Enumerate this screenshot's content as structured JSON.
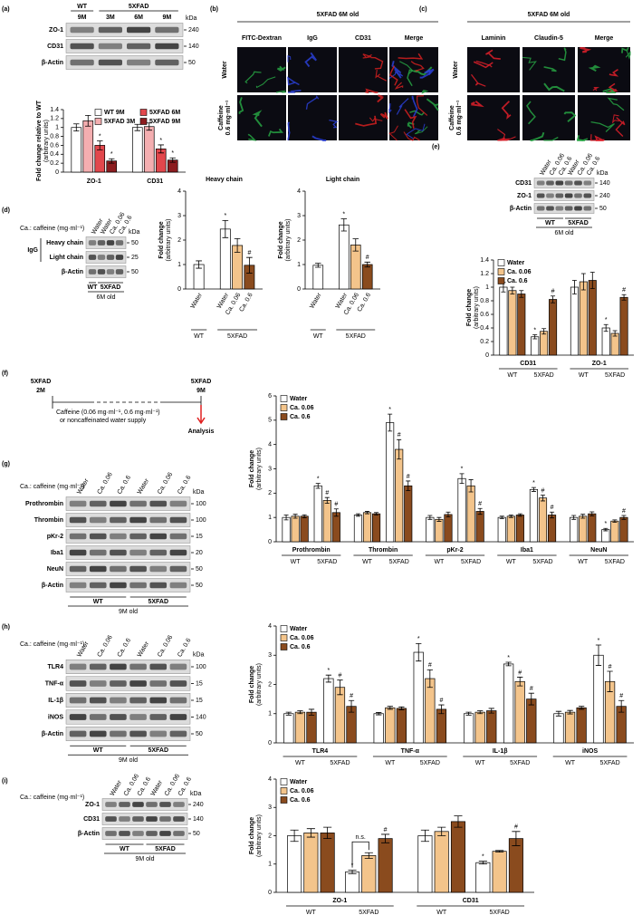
{
  "chart_data": [
    {
      "type": "bar",
      "ylabel": "Fold change relative to WT",
      "ylabel_sub": "(arbitrary units)",
      "categories": [
        "ZO-1",
        "CD31"
      ],
      "series": [
        {
          "name": "WT 9M",
          "color": "#ffffff",
          "values": [
            1.0,
            1.0
          ],
          "errors": [
            0.08,
            0.07
          ]
        },
        {
          "name": "5XFAD 3M",
          "color": "#f4aeb0",
          "values": [
            1.15,
            1.02
          ],
          "errors": [
            0.12,
            0.08
          ]
        },
        {
          "name": "5XFAD 6M",
          "color": "#e2474c",
          "values": [
            0.6,
            0.52
          ],
          "errors": [
            0.1,
            0.09
          ],
          "markers": [
            "*",
            "*"
          ]
        },
        {
          "name": "5XFAD 9M",
          "color": "#8c1c1f",
          "values": [
            0.25,
            0.27
          ],
          "errors": [
            0.05,
            0.05
          ],
          "markers": [
            "*",
            "*"
          ]
        }
      ],
      "ylim": [
        0,
        1.4
      ],
      "yticks": [
        0,
        0.2,
        0.4,
        0.6,
        0.8,
        1,
        1.2,
        1.4
      ],
      "legend": "upper right"
    },
    {
      "type": "bar",
      "title": "Heavy chain",
      "ylabel": "Fold change",
      "ylabel_sub": "(arbitrary units)",
      "categories": [
        "WT",
        "5XFAD"
      ],
      "series": [
        {
          "name": "Water",
          "color": "#ffffff",
          "values": [
            1.0,
            2.45
          ],
          "errors": [
            0.15,
            0.35
          ],
          "markers": [
            null,
            "*"
          ]
        },
        {
          "name": "Ca. 0.06",
          "color": "#f3c48b",
          "values": [
            null,
            1.78
          ],
          "errors": [
            null,
            0.28
          ]
        },
        {
          "name": "Ca. 0.6",
          "color": "#8a4b1e",
          "values": [
            null,
            0.97
          ],
          "errors": [
            null,
            0.32
          ],
          "markers": [
            null,
            "#"
          ]
        }
      ],
      "ylim": [
        0,
        4
      ],
      "yticks": [
        0,
        1,
        2,
        3,
        4
      ]
    },
    {
      "type": "bar",
      "title": "Light chain",
      "ylabel": "Fold change",
      "ylabel_sub": "(arbitrary units)",
      "categories": [
        "WT",
        "5XFAD"
      ],
      "series": [
        {
          "name": "Water",
          "color": "#ffffff",
          "values": [
            0.97,
            2.62
          ],
          "errors": [
            0.08,
            0.25
          ],
          "markers": [
            null,
            "*"
          ]
        },
        {
          "name": "Ca. 0.06",
          "color": "#f3c48b",
          "values": [
            null,
            1.8
          ],
          "errors": [
            null,
            0.25
          ]
        },
        {
          "name": "Ca. 0.6",
          "color": "#8a4b1e",
          "values": [
            null,
            1.0
          ],
          "errors": [
            null,
            0.1
          ],
          "markers": [
            null,
            "#"
          ]
        }
      ],
      "ylim": [
        0,
        4
      ],
      "yticks": [
        0,
        1,
        2,
        3,
        4
      ]
    },
    {
      "type": "bar",
      "ylabel": "Fold change",
      "ylabel_sub": "(arbitrary units)",
      "groups": [
        "CD31",
        "ZO-1"
      ],
      "categories": [
        "WT",
        "5XFAD",
        "WT",
        "5XFAD"
      ],
      "series": [
        {
          "name": "Water",
          "color": "#ffffff",
          "values": [
            1.0,
            0.27,
            1.0,
            0.4
          ],
          "errors": [
            0.07,
            0.03,
            0.1,
            0.05
          ],
          "markers": [
            null,
            "*",
            null,
            "*"
          ]
        },
        {
          "name": "Ca. 0.06",
          "color": "#f3c48b",
          "values": [
            0.95,
            0.35,
            1.08,
            0.32
          ],
          "errors": [
            0.05,
            0.04,
            0.12,
            0.04
          ]
        },
        {
          "name": "Ca. 0.6",
          "color": "#8a4b1e",
          "values": [
            0.9,
            0.82,
            1.1,
            0.85
          ],
          "errors": [
            0.05,
            0.05,
            0.12,
            0.04
          ],
          "markers": [
            null,
            "#",
            null,
            "#"
          ]
        }
      ],
      "ylim": [
        0,
        1.4
      ],
      "yticks": [
        0,
        0.2,
        0.4,
        0.6,
        0.8,
        1,
        1.2,
        1.4
      ],
      "legend": "upper left"
    },
    {
      "type": "bar",
      "ylabel": "Fold change",
      "ylabel_sub": "(arbitrary units)",
      "groups": [
        "Prothrombin",
        "Thrombin",
        "pKr-2",
        "Iba1",
        "NeuN"
      ],
      "categories": [
        "WT",
        "5XFAD",
        "WT",
        "5XFAD",
        "WT",
        "5XFAD",
        "WT",
        "5XFAD",
        "WT",
        "5XFAD"
      ],
      "series": [
        {
          "name": "Water",
          "color": "#ffffff",
          "values": [
            1.0,
            2.3,
            1.1,
            4.9,
            1.0,
            2.6,
            1.0,
            2.15,
            1.0,
            0.5
          ],
          "errors": [
            0.1,
            0.1,
            0.05,
            0.35,
            0.08,
            0.2,
            0.05,
            0.08,
            0.08,
            0.05
          ],
          "markers": [
            null,
            "*",
            null,
            "*",
            null,
            "*",
            null,
            "*",
            null,
            "*"
          ]
        },
        {
          "name": "Ca. 0.06",
          "color": "#f3c48b",
          "values": [
            1.05,
            1.7,
            1.2,
            3.8,
            0.92,
            2.3,
            1.05,
            1.8,
            1.05,
            0.85
          ],
          "errors": [
            0.08,
            0.12,
            0.05,
            0.4,
            0.08,
            0.25,
            0.05,
            0.12,
            0.08,
            0.05
          ],
          "markers": [
            null,
            "#",
            null,
            "#",
            null,
            null,
            null,
            "#",
            null,
            null
          ]
        },
        {
          "name": "Ca. 0.6",
          "color": "#8a4b1e",
          "values": [
            1.05,
            1.2,
            1.15,
            2.3,
            1.12,
            1.25,
            1.1,
            1.1,
            1.15,
            1.0
          ],
          "errors": [
            0.06,
            0.15,
            0.05,
            0.2,
            0.1,
            0.12,
            0.05,
            0.12,
            0.08,
            0.08
          ],
          "markers": [
            null,
            "#",
            null,
            "#",
            null,
            "#",
            null,
            "#",
            null,
            "#"
          ]
        }
      ],
      "ylim": [
        0,
        6
      ],
      "yticks": [
        0,
        1,
        2,
        3,
        4,
        5,
        6
      ],
      "legend": "upper left"
    },
    {
      "type": "bar",
      "ylabel": "Fold change",
      "ylabel_sub": "(arbitrary units)",
      "groups": [
        "TLR4",
        "TNF-α",
        "IL-1β",
        "iNOS"
      ],
      "categories": [
        "WT",
        "5XFAD",
        "WT",
        "5XFAD",
        "WT",
        "5XFAD",
        "WT",
        "5XFAD"
      ],
      "series": [
        {
          "name": "Water",
          "color": "#ffffff",
          "values": [
            1.0,
            2.2,
            1.0,
            3.1,
            1.0,
            2.7,
            1.0,
            3.0
          ],
          "errors": [
            0.05,
            0.12,
            0.04,
            0.3,
            0.05,
            0.06,
            0.08,
            0.35
          ],
          "markers": [
            null,
            "*",
            null,
            "*",
            null,
            "*",
            null,
            "*"
          ]
        },
        {
          "name": "Ca. 0.06",
          "color": "#f3c48b",
          "values": [
            1.05,
            1.9,
            1.2,
            2.2,
            1.05,
            2.1,
            1.05,
            2.1
          ],
          "errors": [
            0.05,
            0.25,
            0.05,
            0.3,
            0.05,
            0.15,
            0.06,
            0.35
          ],
          "markers": [
            null,
            "#",
            null,
            "#",
            null,
            "#",
            null,
            "#"
          ]
        },
        {
          "name": "Ca. 0.6",
          "color": "#8a4b1e",
          "values": [
            1.05,
            1.25,
            1.18,
            1.15,
            1.1,
            1.5,
            1.2,
            1.25
          ],
          "errors": [
            0.1,
            0.2,
            0.05,
            0.15,
            0.08,
            0.2,
            0.05,
            0.2
          ],
          "markers": [
            null,
            "#",
            null,
            "#",
            null,
            "#",
            null,
            "#"
          ]
        }
      ],
      "ylim": [
        0,
        4
      ],
      "yticks": [
        0,
        1,
        2,
        3,
        4
      ],
      "legend": "upper left"
    },
    {
      "type": "bar",
      "ylabel": "Fold change",
      "ylabel_sub": "(arbitrary units)",
      "groups": [
        "ZO-1",
        "CD31"
      ],
      "categories": [
        "WT",
        "5XFAD",
        "WT",
        "5XFAD"
      ],
      "series": [
        {
          "name": "Water",
          "color": "#ffffff",
          "values": [
            2.0,
            0.72,
            2.0,
            1.05
          ],
          "errors": [
            0.2,
            0.06,
            0.2,
            0.05
          ],
          "markers": [
            null,
            "*",
            null,
            "*"
          ]
        },
        {
          "name": "Ca. 0.06",
          "color": "#f3c48b",
          "values": [
            2.1,
            1.3,
            2.15,
            1.45
          ],
          "errors": [
            0.15,
            0.1,
            0.15,
            0.03
          ]
        },
        {
          "name": "Ca. 0.6",
          "color": "#8a4b1e",
          "values": [
            2.1,
            1.9,
            2.5,
            1.9
          ],
          "errors": [
            0.2,
            0.15,
            0.2,
            0.25
          ],
          "markers": [
            null,
            "#",
            null,
            "#"
          ]
        }
      ],
      "ylim": [
        0,
        4
      ],
      "yticks": [
        0,
        1,
        2,
        3,
        4
      ],
      "legend": "upper left",
      "annotation": "n.s."
    }
  ],
  "figure": {
    "panel_labels": [
      "(a)",
      "(b)",
      "(c)",
      "(d)",
      "(e)",
      "(f)",
      "(g)",
      "(h)",
      "(i)"
    ],
    "blots": [
      {
        "groups": [
          {
            "name": "WT",
            "lanes": [
              "9M"
            ]
          },
          {
            "name": "5XFAD",
            "lanes": [
              "3M",
              "6M",
              "9M"
            ]
          }
        ],
        "rows": [
          {
            "name": "ZO-1",
            "kda": 240
          },
          {
            "name": "CD31",
            "kda": 140
          },
          {
            "name": "β-Actin",
            "kda": 50
          }
        ],
        "kda_unit": "kDa"
      },
      {
        "caption": "Ca.: caffeine (mg·ml⁻¹)",
        "groups": [
          {
            "name": "WT",
            "lanes": [
              "Water"
            ]
          },
          {
            "name": "5XFAD",
            "lanes": [
              "Water",
              "Ca. 0.06",
              "Ca. 0.6"
            ]
          }
        ],
        "rows": [
          {
            "name": "Heavy chain",
            "kda": 50
          },
          {
            "name": "Light chain",
            "kda": 25
          },
          {
            "name": "β-Actin",
            "kda": 50
          }
        ],
        "bracket": "IgG",
        "age": "6M old",
        "kda_unit": "kDa"
      },
      {
        "groups": [
          {
            "name": "WT",
            "lanes": [
              "Water",
              "Ca. 0.06",
              "Ca. 0.6"
            ]
          },
          {
            "name": "5XFAD",
            "lanes": [
              "Water",
              "Ca. 0.06",
              "Ca. 0.6"
            ]
          }
        ],
        "rows": [
          {
            "name": "CD31",
            "kda": 140
          },
          {
            "name": "ZO-1",
            "kda": 240
          },
          {
            "name": "β-Actin",
            "kda": 50
          }
        ],
        "age": "6M old",
        "kda_unit": "kDa"
      },
      {
        "caption": "Ca.: caffeine (mg·ml⁻¹)",
        "groups": [
          {
            "name": "WT",
            "lanes": [
              "Water",
              "Ca. 0.06",
              "Ca. 0.6"
            ]
          },
          {
            "name": "5XFAD",
            "lanes": [
              "Water",
              "Ca. 0.06",
              "Ca. 0.6"
            ]
          }
        ],
        "rows": [
          {
            "name": "Prothrombin",
            "kda": 100
          },
          {
            "name": "Thrombin",
            "kda": 100
          },
          {
            "name": "pKr-2",
            "kda": 15
          },
          {
            "name": "Iba1",
            "kda": 20
          },
          {
            "name": "NeuN",
            "kda": 50
          },
          {
            "name": "β-Actin",
            "kda": 50
          }
        ],
        "age": "9M old",
        "kda_unit": "kDa"
      },
      {
        "caption": "Ca.: caffeine (mg·ml⁻¹)",
        "groups": [
          {
            "name": "WT",
            "lanes": [
              "Water",
              "Ca. 0.06",
              "Ca. 0.6"
            ]
          },
          {
            "name": "5XFAD",
            "lanes": [
              "Water",
              "Ca. 0.06",
              "Ca. 0.6"
            ]
          }
        ],
        "rows": [
          {
            "name": "TLR4",
            "kda": 100
          },
          {
            "name": "TNF-α",
            "kda": 15
          },
          {
            "name": "IL-1β",
            "kda": 15
          },
          {
            "name": "iNOS",
            "kda": 140
          },
          {
            "name": "β-Actin",
            "kda": 50
          }
        ],
        "age": "9M old",
        "kda_unit": "kDa"
      },
      {
        "caption": "Ca.: caffeine (mg·ml⁻¹)",
        "groups": [
          {
            "name": "WT",
            "lanes": [
              "Water",
              "Ca. 0.06",
              "Ca. 0.6"
            ]
          },
          {
            "name": "5XFAD",
            "lanes": [
              "Water",
              "Ca. 0.06",
              "Ca. 0.6"
            ]
          }
        ],
        "rows": [
          {
            "name": "ZO-1",
            "kda": 240
          },
          {
            "name": "CD31",
            "kda": 140
          },
          {
            "name": "β-Actin",
            "kda": 50
          }
        ],
        "age": "9M old",
        "kda_unit": "kDa"
      }
    ],
    "images": [
      {
        "title": "5XFAD 6M old",
        "columns": [
          {
            "name": "FITC-Dextran",
            "color": "#27a343"
          },
          {
            "name": "IgG",
            "color": "#2a3fd6"
          },
          {
            "name": "CD31",
            "color": "#d42020"
          },
          {
            "name": "Merge",
            "color": "#c9a21a"
          }
        ],
        "rows": [
          [
            "Water"
          ],
          [
            "Caffeine",
            "0.6 mg·ml⁻¹"
          ]
        ]
      },
      {
        "title": "5XFAD 6M old",
        "columns": [
          {
            "name": "Laminin",
            "color": "#e0202a"
          },
          {
            "name": "Claudin-5",
            "color": "#27a343"
          },
          {
            "name": "Merge",
            "color": "#d49a1a"
          }
        ],
        "rows": [
          [
            "Water"
          ],
          [
            "Caffeine",
            "0.6 mg·ml⁻¹"
          ]
        ]
      }
    ],
    "timeline": {
      "start": [
        "5XFAD",
        "2M"
      ],
      "end": [
        "5XFAD",
        "9M"
      ],
      "treatment": [
        "Caffeine (0.06 mg·ml⁻¹, 0.6 mg·ml⁻¹)",
        "or noncaffeinated water supply"
      ],
      "end_label": "Analysis"
    }
  }
}
